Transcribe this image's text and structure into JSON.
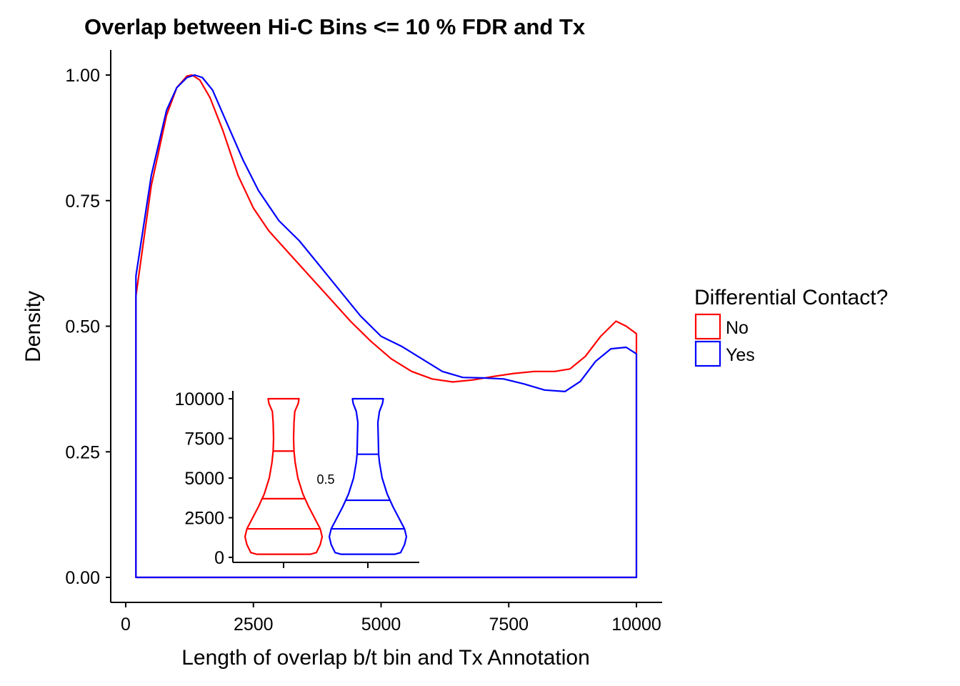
{
  "chart_data": {
    "type": "area",
    "title": "Overlap between Hi-C Bins <= 10 % FDR and Tx",
    "xlabel": "Length of overlap b/t bin and Tx Annotation",
    "ylabel": "Density",
    "xlim": [
      -600,
      10600
    ],
    "ylim": [
      -0.05,
      1.05
    ],
    "x_ticks": [
      0,
      2500,
      5000,
      7500,
      10000
    ],
    "x_tick_labels": [
      "0",
      "2500",
      "5000",
      "7500",
      "10000"
    ],
    "y_ticks": [
      0,
      0.25,
      0.5,
      0.75,
      1.0
    ],
    "y_tick_labels": [
      "0.00",
      "0.25",
      "0.50",
      "0.75",
      "1.00"
    ],
    "grid": false,
    "legend": {
      "title": "Differential Contact?",
      "position": "right",
      "entries": [
        {
          "label": "No",
          "color": "#ff0000"
        },
        {
          "label": "Yes",
          "color": "#0000ff"
        }
      ]
    },
    "series": [
      {
        "name": "No",
        "color": "#ff0000",
        "x": [
          200,
          500,
          800,
          1000,
          1200,
          1300,
          1450,
          1650,
          1900,
          2200,
          2500,
          2800,
          3200,
          3600,
          4000,
          4400,
          4800,
          5200,
          5600,
          6000,
          6400,
          6800,
          7200,
          7600,
          8000,
          8400,
          8700,
          9000,
          9300,
          9600,
          9800,
          10000
        ],
        "y": [
          0.56,
          0.78,
          0.92,
          0.975,
          0.998,
          1.0,
          0.99,
          0.955,
          0.89,
          0.8,
          0.735,
          0.69,
          0.645,
          0.6,
          0.555,
          0.51,
          0.47,
          0.435,
          0.41,
          0.395,
          0.389,
          0.393,
          0.4,
          0.406,
          0.41,
          0.41,
          0.415,
          0.44,
          0.48,
          0.51,
          0.5,
          0.485
        ]
      },
      {
        "name": "Yes",
        "color": "#0000ff",
        "x": [
          200,
          500,
          800,
          1000,
          1200,
          1350,
          1500,
          1700,
          2000,
          2300,
          2600,
          3000,
          3400,
          3800,
          4200,
          4600,
          5000,
          5400,
          5800,
          6200,
          6600,
          7000,
          7400,
          7800,
          8200,
          8600,
          8900,
          9200,
          9500,
          9800,
          10000
        ],
        "y": [
          0.6,
          0.8,
          0.93,
          0.975,
          0.995,
          1.0,
          0.995,
          0.97,
          0.9,
          0.83,
          0.77,
          0.71,
          0.67,
          0.62,
          0.57,
          0.52,
          0.48,
          0.46,
          0.435,
          0.41,
          0.398,
          0.397,
          0.395,
          0.385,
          0.373,
          0.37,
          0.39,
          0.43,
          0.455,
          0.458,
          0.445
        ]
      }
    ],
    "inset": {
      "type": "violin",
      "ylim": [
        0,
        10000
      ],
      "y_ticks": [
        0,
        2500,
        5000,
        7500,
        10000
      ],
      "y_tick_labels": [
        "0",
        "2500",
        "5000",
        "7500",
        "10000"
      ],
      "annotation": "0.5",
      "groups": [
        {
          "name": "No",
          "color": "#ff0000",
          "quantiles": [
            1800,
            3700,
            6700
          ],
          "profile_y": [
            200,
            300,
            800,
            1300,
            1800,
            2500,
            3200,
            4000,
            5000,
            6000,
            6700,
            7500,
            8500,
            9200,
            9700,
            10000
          ],
          "profile_w": [
            0.7,
            0.85,
            0.95,
            1.0,
            0.95,
            0.8,
            0.65,
            0.5,
            0.37,
            0.3,
            0.27,
            0.26,
            0.27,
            0.29,
            0.38,
            0.4
          ]
        },
        {
          "name": "Yes",
          "color": "#0000ff",
          "quantiles": [
            1800,
            3600,
            6500
          ],
          "profile_y": [
            200,
            300,
            800,
            1300,
            1800,
            2500,
            3200,
            4000,
            5000,
            6000,
            6500,
            7500,
            8500,
            9200,
            9700,
            10000
          ],
          "profile_w": [
            0.7,
            0.85,
            0.95,
            1.0,
            0.95,
            0.8,
            0.65,
            0.5,
            0.37,
            0.3,
            0.28,
            0.27,
            0.26,
            0.3,
            0.38,
            0.4
          ]
        }
      ]
    }
  }
}
